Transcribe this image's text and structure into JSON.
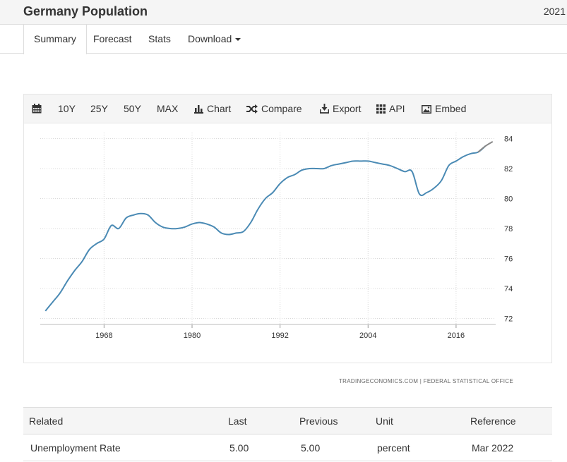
{
  "header": {
    "title": "Germany Population",
    "year": "2021"
  },
  "tabs": [
    {
      "label": "Summary"
    },
    {
      "label": "Forecast"
    },
    {
      "label": "Stats"
    },
    {
      "label": "Download"
    }
  ],
  "toolbar": {
    "periods": [
      "10Y",
      "25Y",
      "50Y",
      "MAX"
    ],
    "chart_label": "Chart",
    "compare_label": "Compare",
    "export_label": "Export",
    "api_label": "API",
    "embed_label": "Embed"
  },
  "attribution": "TRADINGECONOMICS.COM  |  FEDERAL STATISTICAL OFFICE",
  "chart_data": {
    "type": "line",
    "title": "",
    "xlabel": "",
    "ylabel": "",
    "x_ticks": [
      1968,
      1980,
      1992,
      2004,
      2016
    ],
    "y_ticks": [
      72,
      74,
      76,
      78,
      80,
      82,
      84
    ],
    "xlim": [
      1959.3,
      2021.4
    ],
    "ylim": [
      71.6,
      84.4
    ],
    "y_axis_side": "right",
    "grid": true,
    "line_color": "#4a8ab4",
    "forecast_color": "#888888",
    "x": [
      1960,
      1961,
      1962,
      1963,
      1964,
      1965,
      1966,
      1967,
      1968,
      1969,
      1970,
      1971,
      1972,
      1973,
      1974,
      1975,
      1976,
      1977,
      1978,
      1979,
      1980,
      1981,
      1982,
      1983,
      1984,
      1985,
      1986,
      1987,
      1988,
      1989,
      1990,
      1991,
      1992,
      1993,
      1994,
      1995,
      1996,
      1997,
      1998,
      1999,
      2000,
      2001,
      2002,
      2003,
      2004,
      2005,
      2006,
      2007,
      2008,
      2009,
      2010,
      2011,
      2012,
      2013,
      2014,
      2015,
      2016,
      2017,
      2018,
      2019,
      2020,
      2021
    ],
    "values": [
      72.5,
      73.1,
      73.7,
      74.5,
      75.2,
      75.8,
      76.6,
      77.0,
      77.3,
      78.2,
      78.0,
      78.7,
      78.9,
      79.0,
      78.9,
      78.4,
      78.1,
      78.0,
      78.0,
      78.1,
      78.3,
      78.4,
      78.3,
      78.1,
      77.7,
      77.6,
      77.7,
      77.8,
      78.4,
      79.3,
      80.0,
      80.4,
      81.0,
      81.4,
      81.6,
      81.9,
      82.0,
      82.0,
      82.0,
      82.2,
      82.3,
      82.4,
      82.5,
      82.5,
      82.5,
      82.4,
      82.3,
      82.2,
      82.0,
      81.8,
      81.8,
      80.3,
      80.4,
      80.7,
      81.2,
      82.2,
      82.5,
      82.8,
      83.0,
      83.1,
      83.5,
      83.8
    ]
  },
  "related": {
    "columns": [
      "Related",
      "Last",
      "Previous",
      "Unit",
      "Reference"
    ],
    "rows": [
      [
        "Unemployment Rate",
        "5.00",
        "5.00",
        "percent",
        "Mar 2022"
      ]
    ]
  }
}
